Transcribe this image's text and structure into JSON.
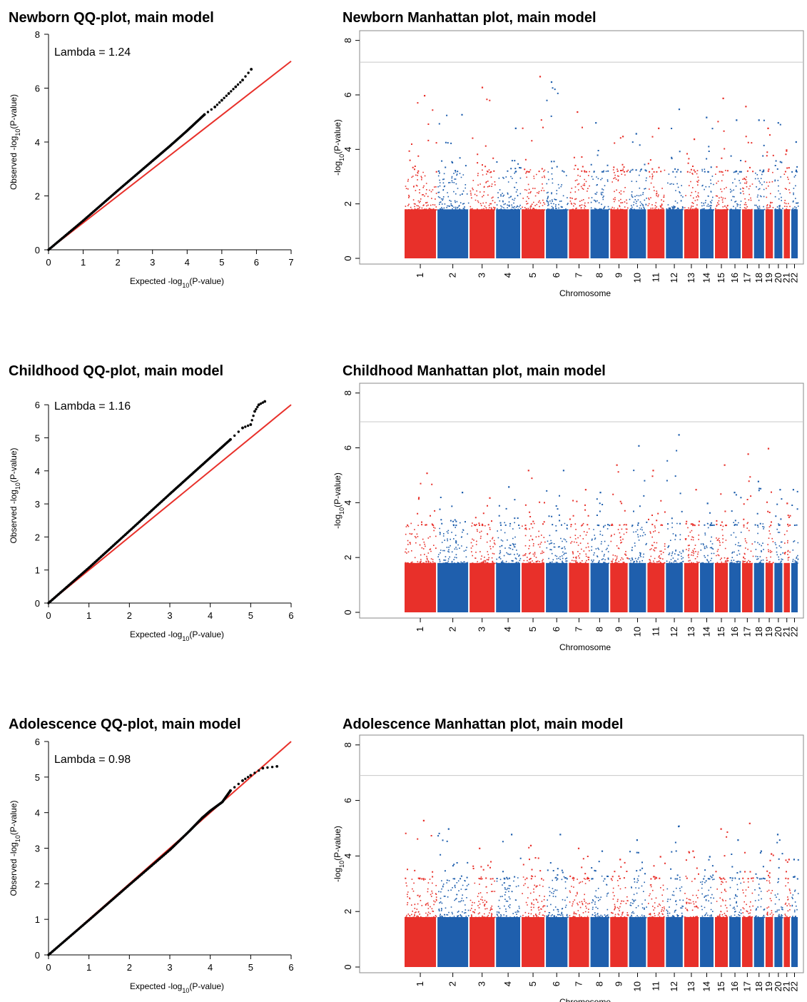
{
  "chart_data": [
    {
      "type": "scatter",
      "title": "Newborn QQ-plot, main model",
      "xlabel": "Expected -log10(P-value)",
      "ylabel": "Observed -log10(P-value)",
      "xlim": [
        0,
        7
      ],
      "ylim": [
        0,
        8
      ],
      "xticks": [
        0,
        1,
        2,
        3,
        4,
        5,
        6,
        7
      ],
      "yticks": [
        0,
        2,
        4,
        6,
        8
      ],
      "annotation": "Lambda = 1.24",
      "reference_line": {
        "color": "#e8302a",
        "x": [
          0,
          7
        ],
        "y": [
          0,
          7
        ]
      },
      "points_color": "#000000",
      "x": [
        0,
        1,
        2,
        3,
        3.5,
        4,
        4.5,
        4.8,
        5.0,
        5.2,
        5.4,
        5.6,
        5.85
      ],
      "y": [
        0,
        1.08,
        2.2,
        3.3,
        3.85,
        4.42,
        5.02,
        5.3,
        5.55,
        5.8,
        6.05,
        6.3,
        6.7
      ]
    },
    {
      "type": "scatter",
      "title": "Newborn Manhattan plot, main model",
      "xlabel": "Chromosome",
      "ylabel": "-log10(P-value)",
      "ylim": [
        0,
        8.2
      ],
      "yticks": [
        0,
        2,
        4,
        6,
        8
      ],
      "chromosomes": [
        "1",
        "2",
        "3",
        "4",
        "5",
        "6",
        "7",
        "8",
        "9",
        "10",
        "11",
        "12",
        "13",
        "14",
        "15",
        "16",
        "17",
        "18",
        "19",
        "20",
        "21",
        "22"
      ],
      "chromosome_colors": [
        "#e8302a",
        "#1f5fad"
      ],
      "significance_line": 7.2,
      "peak_values": [
        6.0,
        5.3,
        6.3,
        4.8,
        6.7,
        6.5,
        5.4,
        5.0,
        4.5,
        4.6,
        4.8,
        5.5,
        4.4,
        5.2,
        5.9,
        5.1,
        5.6,
        5.1,
        4.8,
        5.0,
        4.0,
        4.3
      ]
    },
    {
      "type": "scatter",
      "title": "Childhood QQ-plot, main model",
      "xlabel": "Expected -log10(P-value)",
      "ylabel": "Observed -log10(P-value)",
      "xlim": [
        0,
        6
      ],
      "ylim": [
        0,
        6.5
      ],
      "xticks": [
        0,
        1,
        2,
        3,
        4,
        5,
        6
      ],
      "yticks": [
        0,
        1,
        2,
        3,
        4,
        5,
        6
      ],
      "annotation": "Lambda = 1.16",
      "reference_line": {
        "color": "#e8302a",
        "x": [
          0,
          6
        ],
        "y": [
          0,
          6
        ]
      },
      "points_color": "#000000",
      "x": [
        0,
        1,
        2,
        3,
        3.5,
        4,
        4.5,
        4.8,
        5.0,
        5.1,
        5.2,
        5.35
      ],
      "y": [
        0,
        1.07,
        2.18,
        3.3,
        3.85,
        4.4,
        4.95,
        5.3,
        5.4,
        5.8,
        6.0,
        6.1
      ]
    },
    {
      "type": "scatter",
      "title": "Childhood Manhattan plot, main model",
      "xlabel": "Chromosome",
      "ylabel": "-log10(P-value)",
      "ylim": [
        0,
        8.2
      ],
      "yticks": [
        0,
        2,
        4,
        6,
        8
      ],
      "chromosomes": [
        "1",
        "2",
        "3",
        "4",
        "5",
        "6",
        "7",
        "8",
        "9",
        "10",
        "11",
        "12",
        "13",
        "14",
        "15",
        "16",
        "17",
        "18",
        "19",
        "20",
        "21",
        "22"
      ],
      "chromosome_colors": [
        "#e8302a",
        "#1f5fad"
      ],
      "significance_line": 6.95,
      "peak_values": [
        5.1,
        4.4,
        4.2,
        4.6,
        5.2,
        5.2,
        4.5,
        4.4,
        5.4,
        6.1,
        5.2,
        6.5,
        4.5,
        4.0,
        5.4,
        4.4,
        5.8,
        4.8,
        6.0,
        4.5,
        4.0,
        4.5
      ]
    },
    {
      "type": "scatter",
      "title": "Adolescence QQ-plot, main model",
      "xlabel": "Expected -log10(P-value)",
      "ylabel": "Observed -log10(P-value)",
      "xlim": [
        0,
        6
      ],
      "ylim": [
        0,
        6
      ],
      "xticks": [
        0,
        1,
        2,
        3,
        4,
        5,
        6
      ],
      "yticks": [
        0,
        1,
        2,
        3,
        4,
        5,
        6
      ],
      "annotation": "Lambda = 0.98",
      "reference_line": {
        "color": "#e8302a",
        "x": [
          0,
          6
        ],
        "y": [
          0,
          6
        ]
      },
      "points_color": "#000000",
      "x": [
        0,
        1,
        2,
        3,
        3.5,
        3.8,
        4.0,
        4.3,
        4.5,
        4.8,
        5.0,
        5.3,
        5.65
      ],
      "y": [
        0,
        0.98,
        1.97,
        2.95,
        3.5,
        3.85,
        4.05,
        4.3,
        4.62,
        4.9,
        5.05,
        5.25,
        5.3
      ]
    },
    {
      "type": "scatter",
      "title": "Adolescence Manhattan plot, main model",
      "xlabel": "Chromosome",
      "ylabel": "-log10(P-value)",
      "ylim": [
        0,
        8.2
      ],
      "yticks": [
        0,
        2,
        4,
        6,
        8
      ],
      "chromosomes": [
        "1",
        "2",
        "3",
        "4",
        "5",
        "6",
        "7",
        "8",
        "9",
        "10",
        "11",
        "12",
        "13",
        "14",
        "15",
        "16",
        "17",
        "18",
        "19",
        "20",
        "21",
        "22"
      ],
      "chromosome_colors": [
        "#e8302a",
        "#1f5fad"
      ],
      "significance_line": 6.9,
      "peak_values": [
        5.3,
        5.0,
        4.3,
        4.8,
        4.4,
        4.8,
        4.3,
        4.2,
        3.9,
        4.6,
        4.0,
        5.1,
        4.2,
        4.0,
        5.0,
        4.6,
        5.2,
        4.2,
        4.1,
        4.8,
        3.9,
        3.9
      ]
    }
  ]
}
